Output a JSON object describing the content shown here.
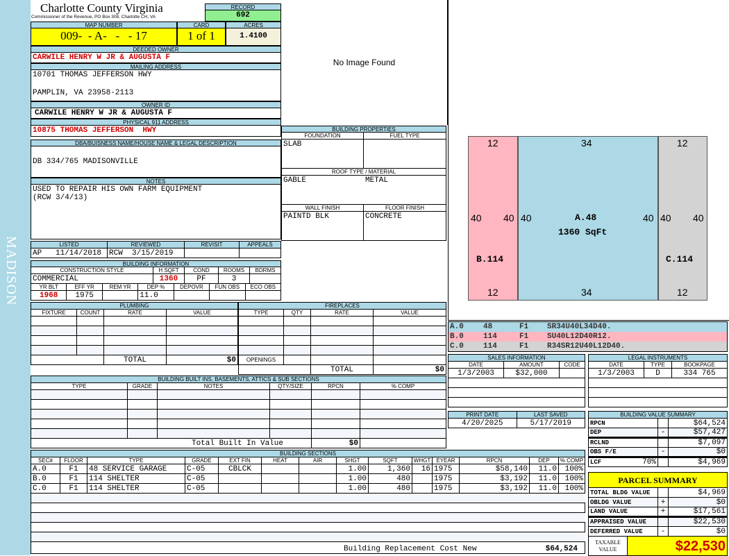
{
  "county": {
    "title": "Charlotte County Virginia",
    "subtitle": "Commissioner of the Revenue, PO Box 308, Charlotte CH, VA"
  },
  "district": "MADISON",
  "record": {
    "label": "RECORD",
    "value": "692"
  },
  "map": {
    "label": "MAP NUMBER",
    "value": "009-  - A-   -   - 17"
  },
  "card": {
    "label": "CARD",
    "value": "1 of 1"
  },
  "acres": {
    "label": "ACRES",
    "value": "1.4100"
  },
  "deeded_owner": {
    "label": "DEEDED OWNER",
    "value": "CARWILE HENRY W JR & AUGUSTA F"
  },
  "mailing": {
    "label": "MAILING ADDRESS",
    "line1": "10701 THOMAS JEFFERSON HWY",
    "line3": "PAMPLIN, VA 23958-2113"
  },
  "owner_id": {
    "label": "OWNER ID",
    "value": "CARWILE HENRY W JR & AUGUSTA F"
  },
  "physical": {
    "label": "PHYSICAL 911 ADDRESS",
    "value": "10875 THOMAS JEFFERSON  HWY"
  },
  "image": {
    "text": "No Image Found"
  },
  "building_properties": {
    "title": "BUILDING PROPERTIES",
    "foundation_label": "FOUNDATION",
    "foundation": "SLAB",
    "fuel_label": "FUEL TYPE",
    "fuel": "",
    "roof_label": "ROOF TYPE / MATERIAL",
    "roof_type": "GABLE",
    "roof_material": "METAL",
    "wall_label": "WALL FINISH",
    "wall": "PAINTD BLK",
    "floor_label": "FLOOR FINISH",
    "floor": "CONCRETE"
  },
  "dba": {
    "label": "DBA/BUISNESS NAME/HOUSE NAME & LEGAL DESCRIPTION",
    "value": "DB 334/765 MADISONVILLE"
  },
  "notes": {
    "label": "NOTES",
    "line1": "USED TO REPAIR HIS OWN FARM EQUIPMENT",
    "line2": "(RCW 3/4/13)"
  },
  "review": {
    "headers": [
      "LISTED",
      "REVIEWED",
      "REVISIT",
      "APPEALS"
    ],
    "values": [
      "AP   11/14/2018",
      "RCW  3/15/2019",
      "",
      ""
    ]
  },
  "building_info": {
    "title": "BUILDING INFORMATION",
    "headers1": [
      "CONSTRUCTION STYLE",
      "H SQFT",
      "COND",
      "ROOMS",
      "BDRMS"
    ],
    "values1": [
      "COMMERCIAL",
      "1360",
      "PF",
      "3",
      ""
    ],
    "headers2": [
      "YR BLT",
      "EFF YR",
      "REM YR",
      "DEP %",
      "DEPOVR",
      "FUN OBS",
      "ECO OBS"
    ],
    "values2": [
      "1968",
      "1975",
      "",
      "11.0",
      "",
      "",
      ""
    ]
  },
  "plumbing": {
    "title": "PLUMBING",
    "headers": [
      "FIXTURE",
      "COUNT",
      "RATE",
      "VALUE"
    ],
    "total_label": "TOTAL",
    "total": "$0"
  },
  "fireplaces": {
    "title": "FIREPLACES",
    "headers": [
      "TYPE",
      "QTY",
      "RATE",
      "VALUE"
    ],
    "openings_label": "OPENINGS",
    "total_label": "TOTAL",
    "total": "$0"
  },
  "built_ins": {
    "title": "BUILDING BUILT INS, BASEMENTS, ATTICS & SUB SECTIONS",
    "headers": [
      "TYPE",
      "GRADE",
      "NOTES",
      "QTY/SIZE",
      "RPCN",
      "% COMP"
    ],
    "total_label": "Total Built In Value",
    "total": "$0"
  },
  "sections": {
    "title": "BUILDING SECTIONS",
    "headers": [
      "SEC#",
      "FLOOR",
      "TYPE",
      "GRADE",
      "EXT FIN",
      "HEAT",
      "AIR",
      "SHGT",
      "SQFT",
      "WHGT",
      "EYEAR",
      "RPCN",
      "DEP",
      "% COMP"
    ],
    "rows": [
      [
        "A.0",
        "F1",
        "48 SERVICE GARAGE",
        "C-05",
        "CBLCK",
        "",
        "",
        "1.00",
        "1,360",
        "16",
        "1975",
        "$58,140",
        "11.0",
        "100%"
      ],
      [
        "B.0",
        "F1",
        "114 SHELTER",
        "C-05",
        "",
        "",
        "",
        "1.00",
        "480",
        "",
        "1975",
        "$3,192",
        "11.0",
        "100%"
      ],
      [
        "C.0",
        "F1",
        "114 SHELTER",
        "C-05",
        "",
        "",
        "",
        "1.00",
        "480",
        "",
        "1975",
        "$3,192",
        "11.0",
        "100%"
      ]
    ],
    "total_label": "Building Replacement Cost New",
    "total": "$64,524"
  },
  "sketch": {
    "B": {
      "top": "12",
      "bottom": "12",
      "left": "40",
      "right": "40",
      "label": "B.114"
    },
    "A": {
      "top": "34",
      "bottom": "34",
      "left": "40",
      "right": "40",
      "label": "A.48",
      "area": "1360 SqFt"
    },
    "C": {
      "top": "12",
      "bottom": "12",
      "left": "40",
      "right": "40",
      "label": "C.114"
    }
  },
  "sketch_legend": [
    {
      "sec": "A.0",
      "code": "48",
      "floor": "F1",
      "path": "SR34U40L34D40."
    },
    {
      "sec": "B.0",
      "code": "114",
      "floor": "F1",
      "path": "SU40L12D40R12."
    },
    {
      "sec": "C.0",
      "code": "114",
      "floor": "F1",
      "path": "R34SR12U40L12D40."
    }
  ],
  "sales": {
    "title": "SALES INFORMATION",
    "headers": [
      "DATE",
      "AMOUNT",
      "CODE"
    ],
    "rows": [
      [
        "1/3/2003",
        "$32,000",
        ""
      ]
    ]
  },
  "legal": {
    "title": "LEGAL INSTRUMENTS",
    "headers": [
      "DATE",
      "TYPE",
      "BOOKPAGE"
    ],
    "rows": [
      [
        "1/3/2003",
        "D",
        "334 765"
      ]
    ]
  },
  "dates": {
    "print_label": "PRINT DATE",
    "print": "4/20/2025",
    "saved_label": "LAST SAVED",
    "saved": "5/17/2019"
  },
  "value_summary": {
    "title": "BUILDING VALUE SUMMARY",
    "rows": [
      {
        "label": "RPCN",
        "pct": "",
        "sign": "",
        "value": "$64,524"
      },
      {
        "label": "DEP",
        "pct": "",
        "sign": "-",
        "value": "$57,427"
      },
      {
        "label": "RCLND",
        "pct": "",
        "sign": "",
        "value": "$7,097"
      },
      {
        "label": "OBS F/E",
        "pct": "",
        "sign": "-",
        "value": "$0"
      },
      {
        "label": "LCF",
        "pct": "70%",
        "sign": "",
        "value": "$4,969"
      }
    ]
  },
  "parcel": {
    "title": "PARCEL SUMMARY",
    "rows": [
      {
        "label": "TOTAL BLDG VALUE",
        "sign": "",
        "value": "$4,969"
      },
      {
        "label": "OBLDG VALUE",
        "sign": "+",
        "value": "$0"
      },
      {
        "label": "LAND VALUE",
        "sign": "+",
        "value": "$17,561"
      },
      {
        "label": "APPRAISED VALUE",
        "sign": "",
        "value": "$22,530"
      },
      {
        "label": "DEFERRED VALUE",
        "sign": "-",
        "value": "$0"
      }
    ],
    "taxable_label": "TAXABLE VALUE",
    "taxable": "$22,530"
  },
  "colors": {
    "header": "#add8e6",
    "highlight": "#ffff00",
    "record": "#90ee90",
    "section_a": "#add8e6",
    "section_b": "#ffb6c1",
    "section_c": "#d3d3d3",
    "emphasis": "#d00000"
  }
}
